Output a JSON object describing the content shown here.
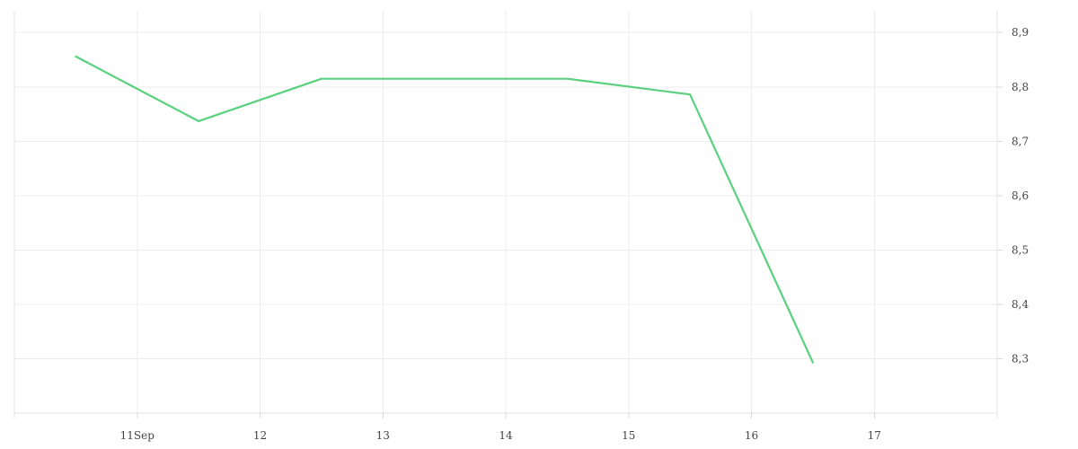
{
  "chart_data": {
    "type": "line",
    "title": "",
    "xlabel": "",
    "ylabel": "",
    "x_ticks": [
      {
        "date": "2024-09-11",
        "label": "11Sep"
      },
      {
        "date": "2024-09-12",
        "label": "12"
      },
      {
        "date": "2024-09-13",
        "label": "13"
      },
      {
        "date": "2024-09-14",
        "label": "14"
      },
      {
        "date": "2024-09-15",
        "label": "15"
      },
      {
        "date": "2024-09-16",
        "label": "16"
      },
      {
        "date": "2024-09-17",
        "label": "17"
      }
    ],
    "y_ticks": [
      {
        "value": 8.3,
        "label": "8,3"
      },
      {
        "value": 8.4,
        "label": "8,4"
      },
      {
        "value": 8.5,
        "label": "8,5"
      },
      {
        "value": 8.6,
        "label": "8,6"
      },
      {
        "value": 8.7,
        "label": "8,7"
      },
      {
        "value": 8.8,
        "label": "8,8"
      },
      {
        "value": 8.9,
        "label": "8,9"
      }
    ],
    "xlim": [
      "2024-09-10T00:00",
      "2024-09-18T00:00"
    ],
    "ylim": [
      8.2,
      8.94
    ],
    "y_axis_side": "right",
    "grid": true,
    "legend": "none",
    "series": [
      {
        "color": "#5ad17f",
        "points": [
          {
            "x": "2024-09-10T12:00",
            "y": 8.856
          },
          {
            "x": "2024-09-11T12:00",
            "y": 8.737
          },
          {
            "x": "2024-09-12T12:00",
            "y": 8.815
          },
          {
            "x": "2024-09-13T12:00",
            "y": 8.815
          },
          {
            "x": "2024-09-14T12:00",
            "y": 8.815
          },
          {
            "x": "2024-09-15T12:00",
            "y": 8.786
          },
          {
            "x": "2024-09-16T12:00",
            "y": 8.293
          }
        ]
      }
    ]
  }
}
